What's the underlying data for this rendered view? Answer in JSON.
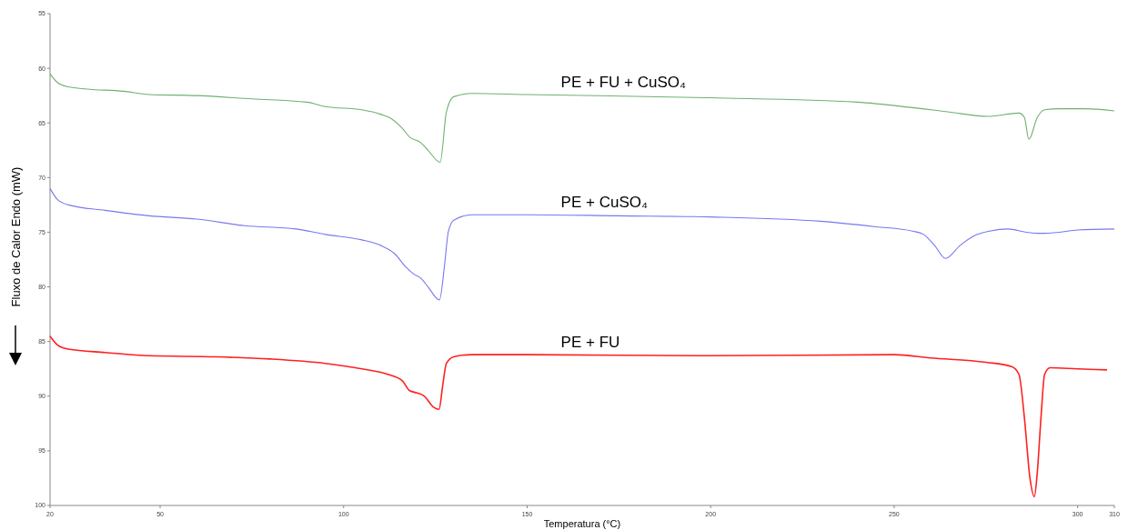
{
  "chart_data": {
    "type": "line",
    "xlabel": "Temperatura (°C)",
    "ylabel": "Fluxo de Calor Endo (mW)",
    "xlim": [
      20,
      310
    ],
    "xticks": [
      20,
      50,
      100,
      150,
      200,
      250,
      300,
      310
    ],
    "ylim": [
      100,
      55
    ],
    "yticks": [
      55,
      60,
      65,
      70,
      75,
      80,
      85,
      90,
      95,
      100
    ],
    "grid": false,
    "marker": "none",
    "line_style": "solid",
    "series": [
      {
        "name": "PE + FU + CuSO₄",
        "color": "#70b070",
        "x": [
          20,
          22,
          25,
          30,
          40,
          47,
          60,
          75,
          90,
          95,
          105,
          110,
          113,
          116,
          118,
          121,
          123,
          126.3,
          128,
          130,
          135,
          150,
          200,
          240,
          255,
          265,
          275.6,
          284,
          285.5,
          286.7,
          289,
          291,
          295,
          302,
          310
        ],
        "values": [
          60.5,
          61.3,
          61.7,
          61.9,
          62.1,
          62.4,
          62.5,
          62.8,
          63.1,
          63.5,
          63.8,
          64.2,
          64.6,
          65.5,
          66.3,
          66.8,
          67.5,
          68.6,
          64,
          62.6,
          62.3,
          62.4,
          62.7,
          63.1,
          63.6,
          64.0,
          64.4,
          64.1,
          64.5,
          66.5,
          64.5,
          63.8,
          63.7,
          63.7,
          63.9
        ]
      },
      {
        "name": "PE + CuSO₄",
        "color": "#7878f0",
        "x": [
          20,
          22,
          25,
          35,
          47,
          60,
          73,
          87,
          95,
          105,
          110,
          114,
          117,
          119,
          121,
          123,
          126.1,
          127.5,
          128.5,
          130,
          135,
          150,
          175,
          200,
          230,
          245,
          255,
          258,
          261,
          264,
          268,
          272,
          276,
          281,
          286,
          290,
          295,
          300,
          310
        ],
        "values": [
          71.0,
          72.0,
          72.5,
          73.0,
          73.5,
          73.8,
          74.4,
          74.7,
          75.2,
          75.7,
          76.2,
          77.0,
          78.2,
          78.8,
          79.2,
          80.0,
          81.2,
          78.0,
          75.0,
          73.9,
          73.4,
          73.4,
          73.5,
          73.6,
          74.0,
          74.5,
          74.9,
          75.2,
          76.2,
          77.4,
          76.2,
          75.3,
          74.9,
          74.7,
          75.0,
          75.1,
          75.0,
          74.8,
          74.7
        ]
      },
      {
        "name": "PE + FU",
        "color": "#ff2020",
        "x": [
          20,
          22,
          25,
          35,
          47,
          65,
          80,
          95,
          105,
          112,
          116,
          118,
          120,
          122,
          124.5,
          126,
          127,
          128,
          130,
          135,
          150,
          200,
          250,
          260,
          275,
          282,
          284,
          285.5,
          287,
          288.2,
          289,
          290,
          291,
          292.5,
          300,
          308
        ],
        "values": [
          84.5,
          85.3,
          85.7,
          86.0,
          86.3,
          86.4,
          86.6,
          87.0,
          87.5,
          88.0,
          88.6,
          89.5,
          89.7,
          90.0,
          91.0,
          91.2,
          89,
          87,
          86.4,
          86.2,
          86.2,
          86.3,
          86.2,
          86.5,
          86.9,
          87.3,
          88,
          92,
          97.5,
          99.2,
          97,
          92,
          88,
          87.4,
          87.5,
          87.6
        ]
      }
    ]
  }
}
